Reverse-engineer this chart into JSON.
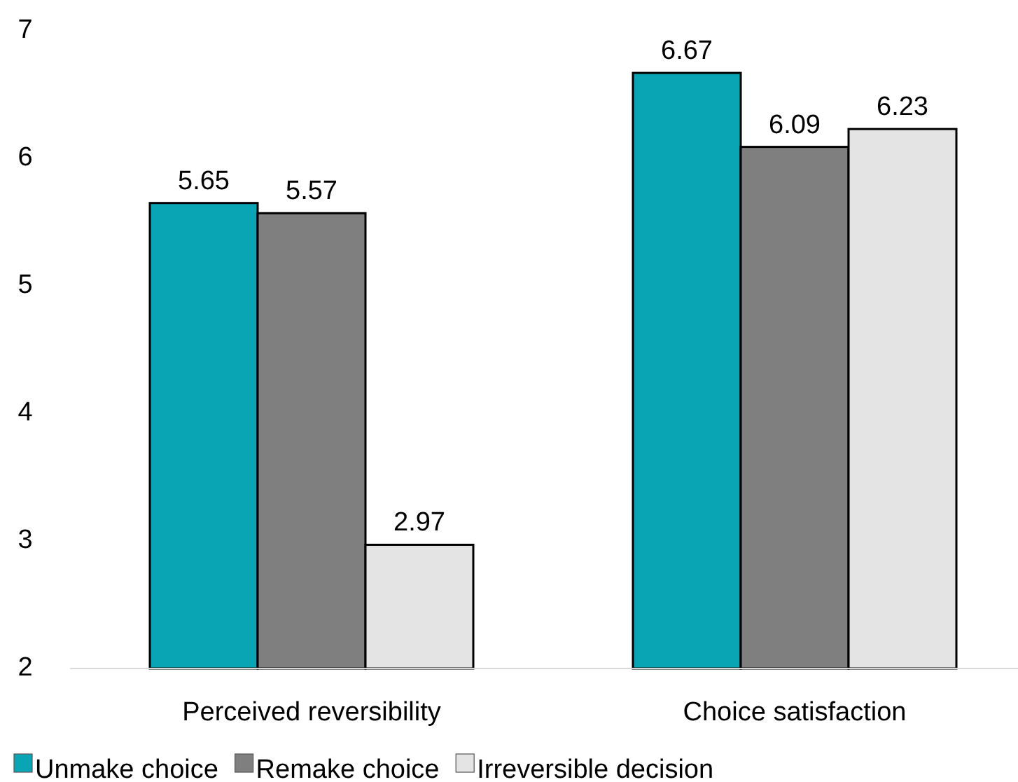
{
  "chart_data": {
    "type": "bar",
    "categories": [
      "Perceived reversibility",
      "Choice satisfaction"
    ],
    "series": [
      {
        "name": "Unmake choice",
        "color": "#0aa5b5",
        "values": [
          5.65,
          6.67
        ]
      },
      {
        "name": "Remake choice",
        "color": "#7f7f7f",
        "values": [
          5.57,
          6.09
        ]
      },
      {
        "name": "Irreversible decision",
        "color": "#e4e4e4",
        "values": [
          2.97,
          6.23
        ]
      }
    ],
    "ylim": [
      2,
      7
    ],
    "yticks": [
      2,
      3,
      4,
      5,
      6,
      7
    ],
    "data_labels": true,
    "grid": false,
    "legend": "bottom"
  }
}
